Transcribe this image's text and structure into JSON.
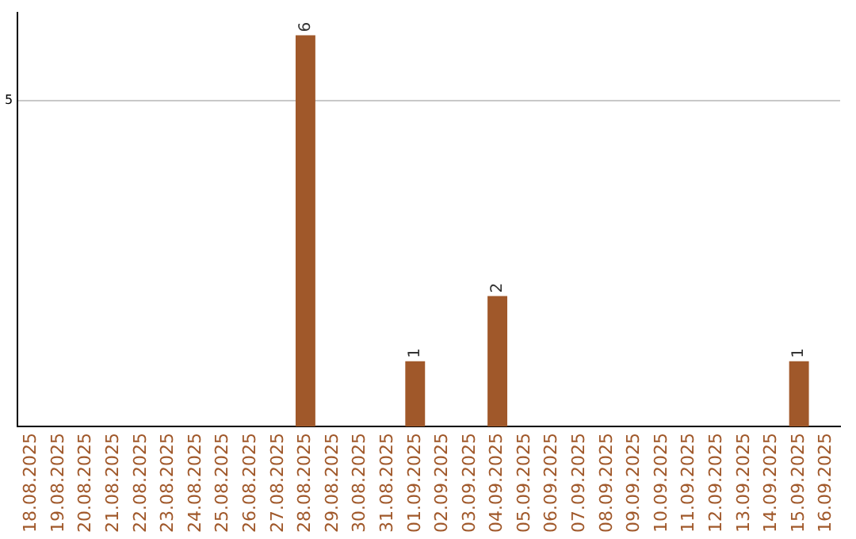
{
  "chart_data": {
    "type": "bar",
    "categories": [
      "18.08.2025",
      "19.08.2025",
      "20.08.2025",
      "21.08.2025",
      "22.08.2025",
      "23.08.2025",
      "24.08.2025",
      "25.08.2025",
      "26.08.2025",
      "27.08.2025",
      "28.08.2025",
      "29.08.2025",
      "30.08.2025",
      "31.08.2025",
      "01.09.2025",
      "02.09.2025",
      "03.09.2025",
      "04.09.2025",
      "05.09.2025",
      "06.09.2025",
      "07.09.2025",
      "08.09.2025",
      "09.09.2025",
      "10.09.2025",
      "11.09.2025",
      "12.09.2025",
      "13.09.2025",
      "14.09.2025",
      "15.09.2025",
      "16.09.2025"
    ],
    "values": [
      0,
      0,
      0,
      0,
      0,
      0,
      0,
      0,
      0,
      0,
      6,
      0,
      0,
      0,
      1,
      0,
      0,
      2,
      0,
      0,
      0,
      0,
      0,
      0,
      0,
      0,
      0,
      0,
      1,
      0
    ],
    "value_labels": [
      null,
      null,
      null,
      null,
      null,
      null,
      null,
      null,
      null,
      null,
      "6",
      null,
      null,
      null,
      "1",
      null,
      null,
      "2",
      null,
      null,
      null,
      null,
      null,
      null,
      null,
      null,
      null,
      null,
      "1",
      null
    ],
    "color": "#a0582a",
    "ylim": [
      0,
      6.35
    ],
    "yticks": [
      5
    ],
    "grid": "y"
  }
}
